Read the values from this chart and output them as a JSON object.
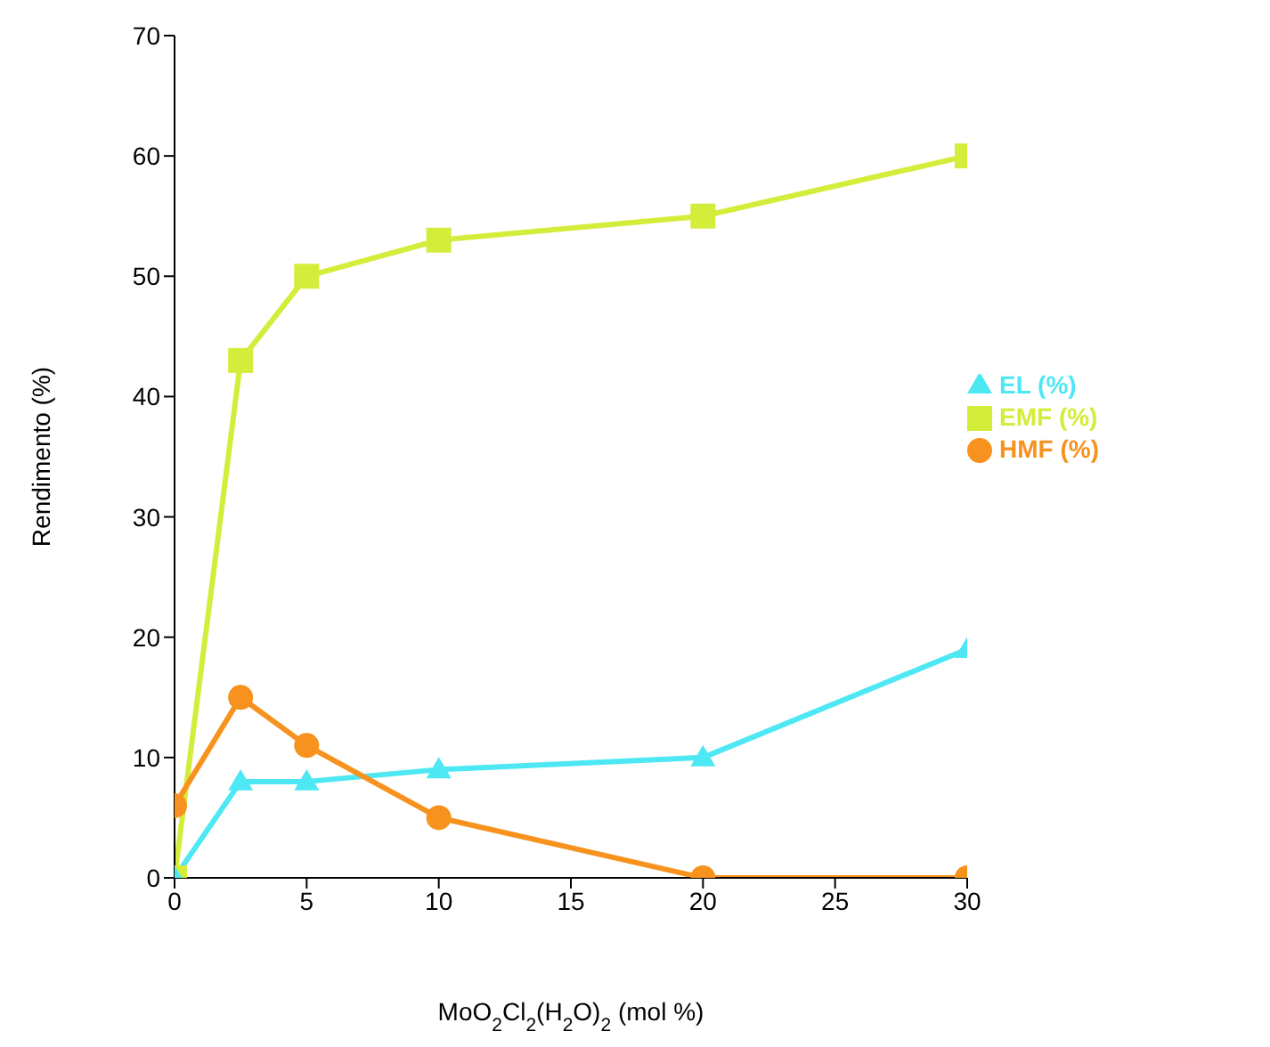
{
  "chart_data": {
    "type": "line",
    "xlabel": "MoO$_{2}$Cl$_{2}$(H$_{2}$O)$_{2}$ (mol %)",
    "ylabel": "Rendimento (%)",
    "x": [
      0,
      2.5,
      5,
      10,
      20,
      30
    ],
    "series": [
      {
        "name": "EMF (%)",
        "color": "#d4ec3a",
        "marker": "square",
        "values": [
          0,
          43,
          50,
          53,
          55,
          60
        ]
      },
      {
        "name": "EL (%)",
        "color": "#4de8f4",
        "marker": "triangle",
        "values": [
          0,
          8,
          8,
          9,
          10,
          19
        ]
      },
      {
        "name": "HMF (%)",
        "color": "#f7921e",
        "marker": "circle",
        "values": [
          6,
          15,
          11,
          5,
          0,
          0
        ]
      }
    ],
    "xlim": [
      0,
      30
    ],
    "xticks": [
      0,
      5,
      10,
      15,
      20,
      25,
      30
    ],
    "ylim": [
      0,
      70
    ],
    "yticks": [
      0,
      10,
      20,
      30,
      40,
      50,
      60,
      70
    ],
    "grid": false,
    "legend": "right",
    "line_style": "solid"
  }
}
